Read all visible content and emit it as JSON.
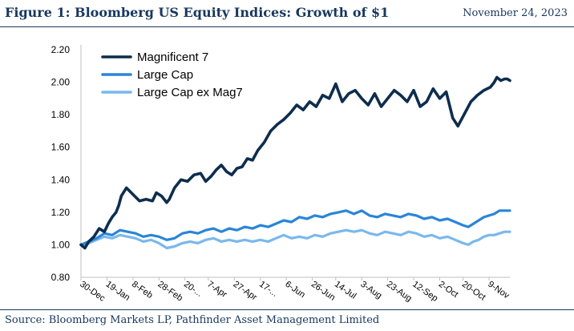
{
  "header": {
    "title": "Figure 1: Bloomberg US Equity Indices: Growth of $1",
    "date": "November 24, 2023"
  },
  "footer": {
    "source": "Source: Bloomberg Markets LP, Pathfinder Asset Management Limited"
  },
  "colors": {
    "mag7": "#0e2d4e",
    "large_cap": "#2a85d8",
    "large_cap_ex": "#7ab8ec",
    "axis": "#bfbfbf",
    "text": "#000000"
  },
  "chart_data": {
    "type": "line",
    "title": "",
    "xlabel": "",
    "ylabel": "",
    "ylim": [
      0.8,
      2.2
    ],
    "yticks": [
      0.8,
      1.0,
      1.2,
      1.4,
      1.6,
      1.8,
      2.0,
      2.2
    ],
    "ytick_labels": [
      "0.80",
      "1.00",
      "1.20",
      "1.40",
      "1.60",
      "1.80",
      "2.00",
      "2.20"
    ],
    "grid": false,
    "legend_position": "top-left",
    "xlim": [
      0,
      330
    ],
    "xticks": [
      {
        "x": 0,
        "label": "30-Dec"
      },
      {
        "x": 20,
        "label": "19-Jan"
      },
      {
        "x": 40,
        "label": "8-Feb"
      },
      {
        "x": 60,
        "label": "28-Feb"
      },
      {
        "x": 80,
        "label": "20-..."
      },
      {
        "x": 98,
        "label": "7-Apr"
      },
      {
        "x": 118,
        "label": "27-Apr"
      },
      {
        "x": 138,
        "label": "17-..."
      },
      {
        "x": 158,
        "label": "6-Jun"
      },
      {
        "x": 178,
        "label": "26-Jun"
      },
      {
        "x": 196,
        "label": "14-Jul"
      },
      {
        "x": 216,
        "label": "3-Aug"
      },
      {
        "x": 236,
        "label": "23-Aug"
      },
      {
        "x": 256,
        "label": "12-Sep"
      },
      {
        "x": 276,
        "label": "2-Oct"
      },
      {
        "x": 294,
        "label": "20-Oct"
      },
      {
        "x": 314,
        "label": "9-Nov"
      }
    ],
    "series": [
      {
        "name": "Magnificent 7",
        "color": "#0e2d4e",
        "x": [
          0,
          3,
          6,
          10,
          14,
          18,
          21,
          24,
          27,
          29,
          31,
          35,
          40,
          45,
          50,
          55,
          58,
          62,
          66,
          68,
          72,
          77,
          82,
          87,
          92,
          96,
          100,
          104,
          108,
          112,
          116,
          120,
          124,
          128,
          132,
          136,
          141,
          146,
          151,
          156,
          161,
          166,
          171,
          176,
          181,
          186,
          191,
          196,
          201,
          206,
          211,
          216,
          221,
          226,
          231,
          236,
          241,
          246,
          251,
          256,
          261,
          266,
          271,
          276,
          281,
          286,
          290,
          292,
          296,
          300,
          305,
          310,
          315,
          318,
          320,
          323,
          326,
          328,
          330
        ],
        "values": [
          1.0,
          0.98,
          1.02,
          1.05,
          1.1,
          1.08,
          1.13,
          1.17,
          1.2,
          1.24,
          1.3,
          1.35,
          1.31,
          1.27,
          1.28,
          1.27,
          1.32,
          1.3,
          1.26,
          1.28,
          1.35,
          1.4,
          1.39,
          1.43,
          1.44,
          1.39,
          1.42,
          1.46,
          1.49,
          1.45,
          1.43,
          1.47,
          1.48,
          1.53,
          1.52,
          1.58,
          1.63,
          1.7,
          1.74,
          1.77,
          1.81,
          1.86,
          1.83,
          1.88,
          1.85,
          1.92,
          1.9,
          1.99,
          1.88,
          1.93,
          1.95,
          1.9,
          1.86,
          1.93,
          1.85,
          1.9,
          1.95,
          1.92,
          1.88,
          1.95,
          1.85,
          1.88,
          1.96,
          1.9,
          1.94,
          1.78,
          1.73,
          1.76,
          1.82,
          1.88,
          1.92,
          1.95,
          1.97,
          2.0,
          2.03,
          2.01,
          2.02,
          2.02,
          2.01
        ]
      },
      {
        "name": "Large Cap",
        "color": "#2a85d8",
        "x": [
          0,
          6,
          12,
          18,
          24,
          30,
          36,
          42,
          48,
          54,
          60,
          66,
          72,
          78,
          84,
          90,
          96,
          102,
          108,
          114,
          120,
          126,
          132,
          138,
          144,
          150,
          156,
          162,
          168,
          174,
          180,
          186,
          192,
          198,
          204,
          210,
          216,
          222,
          228,
          234,
          240,
          246,
          252,
          258,
          264,
          270,
          276,
          282,
          288,
          294,
          298,
          302,
          306,
          310,
          314,
          318,
          322,
          326,
          330
        ],
        "values": [
          1.0,
          1.02,
          1.04,
          1.07,
          1.06,
          1.09,
          1.08,
          1.07,
          1.05,
          1.06,
          1.05,
          1.03,
          1.04,
          1.07,
          1.08,
          1.07,
          1.09,
          1.1,
          1.08,
          1.1,
          1.09,
          1.11,
          1.1,
          1.12,
          1.11,
          1.13,
          1.15,
          1.14,
          1.17,
          1.16,
          1.18,
          1.17,
          1.19,
          1.2,
          1.21,
          1.19,
          1.21,
          1.18,
          1.17,
          1.19,
          1.18,
          1.17,
          1.19,
          1.18,
          1.16,
          1.17,
          1.15,
          1.16,
          1.14,
          1.12,
          1.11,
          1.13,
          1.15,
          1.17,
          1.18,
          1.19,
          1.21,
          1.21,
          1.21
        ]
      },
      {
        "name": "Large Cap ex Mag7",
        "color": "#7ab8ec",
        "x": [
          0,
          6,
          12,
          18,
          24,
          30,
          36,
          42,
          48,
          54,
          60,
          66,
          72,
          78,
          84,
          90,
          96,
          102,
          108,
          114,
          120,
          126,
          132,
          138,
          144,
          150,
          156,
          162,
          168,
          174,
          180,
          186,
          192,
          198,
          204,
          210,
          216,
          222,
          228,
          234,
          240,
          246,
          252,
          258,
          264,
          270,
          276,
          282,
          288,
          294,
          298,
          302,
          306,
          310,
          314,
          318,
          322,
          326,
          330
        ],
        "values": [
          1.0,
          1.01,
          1.03,
          1.05,
          1.04,
          1.06,
          1.05,
          1.04,
          1.02,
          1.03,
          1.01,
          0.98,
          0.99,
          1.01,
          1.02,
          1.01,
          1.03,
          1.04,
          1.02,
          1.03,
          1.02,
          1.03,
          1.02,
          1.03,
          1.02,
          1.04,
          1.06,
          1.04,
          1.05,
          1.04,
          1.06,
          1.05,
          1.07,
          1.08,
          1.09,
          1.08,
          1.09,
          1.07,
          1.06,
          1.08,
          1.07,
          1.06,
          1.08,
          1.07,
          1.05,
          1.06,
          1.04,
          1.05,
          1.03,
          1.01,
          1.0,
          1.02,
          1.03,
          1.05,
          1.06,
          1.06,
          1.07,
          1.08,
          1.08
        ]
      }
    ]
  }
}
